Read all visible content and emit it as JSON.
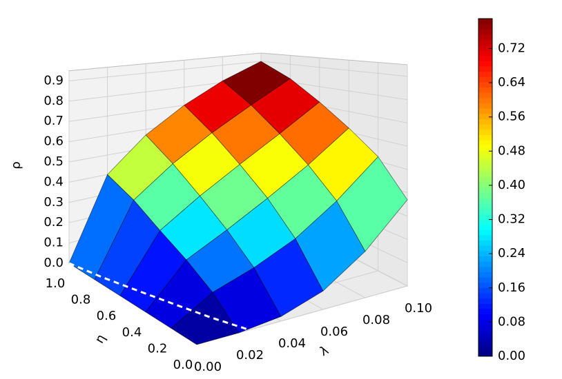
{
  "chart_data": {
    "type": "surface3d",
    "xlabel": "λ",
    "ylabel": "η",
    "zlabel": "ρ",
    "x": [
      0,
      0.02,
      0.04,
      0.06,
      0.08,
      0.1
    ],
    "y": [
      0,
      0.2,
      0.4,
      0.6,
      0.8,
      1
    ],
    "z": [
      [
        0,
        0,
        0.02,
        0.08,
        0.2,
        0.37
      ],
      [
        0,
        0.11,
        0.17,
        0.25,
        0.37,
        0.52
      ],
      [
        0,
        0.19,
        0.28,
        0.38,
        0.49,
        0.62
      ],
      [
        0,
        0.26,
        0.38,
        0.49,
        0.6,
        0.72
      ],
      [
        0,
        0.34,
        0.48,
        0.6,
        0.71,
        0.82
      ],
      [
        0,
        0.4,
        0.57,
        0.7,
        0.81,
        0.9
      ]
    ],
    "colormap": "jet",
    "xlim": [
      0,
      0.1
    ],
    "ylim": [
      0,
      1
    ],
    "zlim": [
      0,
      0.95
    ],
    "xticks": [
      {
        "value": 0,
        "label": "0.00"
      },
      0.02,
      0.04,
      0.06,
      0.08,
      {
        "value": 0.1,
        "label": "0.10"
      }
    ],
    "yticks": [
      {
        "value": 0,
        "label": "0.0"
      },
      0.2,
      0.4,
      0.6,
      0.8,
      {
        "value": 1,
        "label": "1.0"
      }
    ],
    "zticks": [
      {
        "value": 0,
        "label": "0.0"
      },
      0.1,
      0.2,
      0.3,
      0.4,
      0.5,
      0.6,
      0.7,
      0.8,
      0.9
    ],
    "dashed_curve": {
      "color": "#ffffff",
      "x": [
        0,
        0.004,
        0.009,
        0.014,
        0.019,
        0.025
      ],
      "y": [
        1,
        0.8,
        0.6,
        0.4,
        0.2,
        0
      ]
    },
    "colorbar": {
      "clim": [
        0,
        0.79
      ],
      "ticks": [
        {
          "value": 0,
          "label": "0.00"
        },
        0.08,
        0.16,
        0.24,
        0.32,
        {
          "value": 0.4,
          "label": "0.40"
        },
        0.48,
        0.56,
        0.64,
        0.72
      ]
    },
    "grid": true
  }
}
